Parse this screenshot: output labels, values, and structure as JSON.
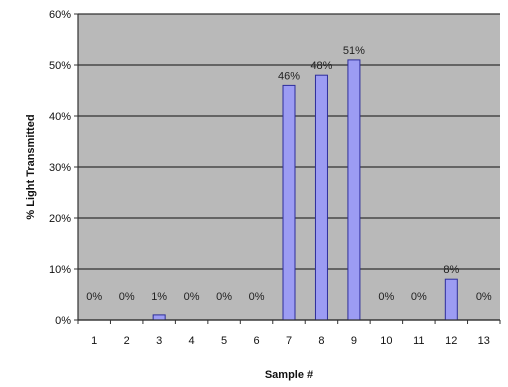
{
  "chart_data": {
    "type": "bar",
    "categories": [
      "1",
      "2",
      "3",
      "4",
      "5",
      "6",
      "7",
      "8",
      "9",
      "10",
      "11",
      "12",
      "13"
    ],
    "values": [
      0,
      0,
      1,
      0,
      0,
      0,
      46,
      48,
      51,
      0,
      0,
      8,
      0
    ],
    "data_labels": [
      "0%",
      "0%",
      "1%",
      "0%",
      "0%",
      "0%",
      "46%",
      "48%",
      "51%",
      "0%",
      "0%",
      "8%",
      "0%"
    ],
    "xlabel": "Sample #",
    "ylabel": "% Light Transmitted",
    "ylim": [
      0,
      60
    ],
    "yticks": [
      "0%",
      "10%",
      "20%",
      "30%",
      "40%",
      "50%",
      "60%"
    ],
    "grid": true,
    "colors": {
      "plot_background": "#b9b9b9",
      "bar_fill": "#9c9cf3",
      "bar_stroke": "#2d2d9a",
      "gridline": "#333333"
    }
  }
}
